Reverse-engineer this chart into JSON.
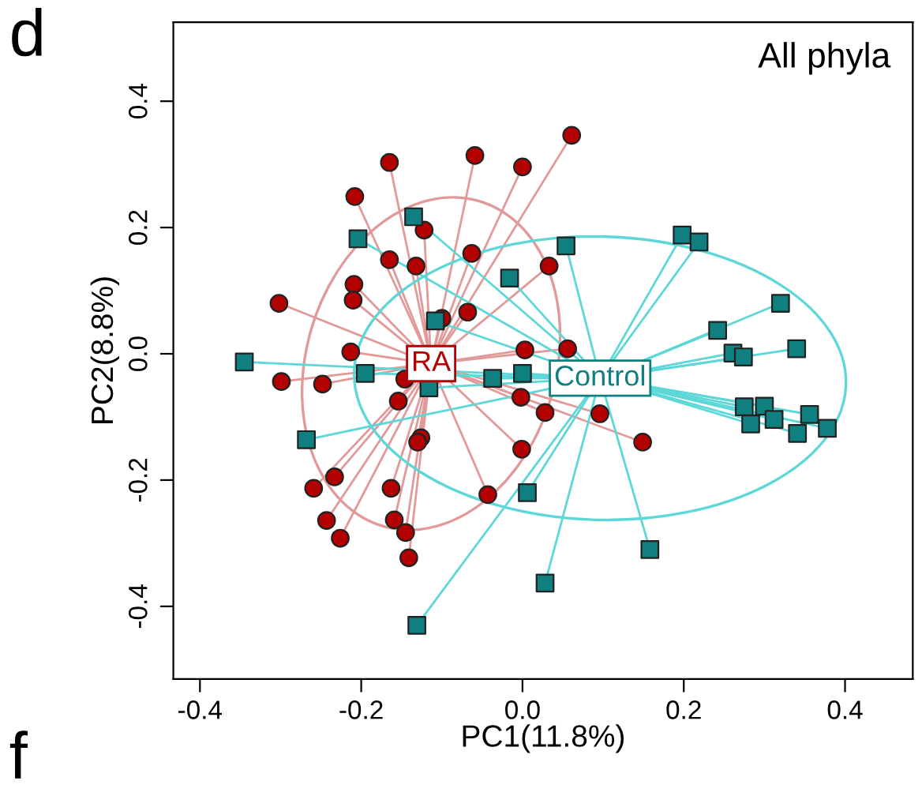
{
  "chart_data": {
    "type": "scatter",
    "title": "All phyla",
    "xlabel": "PC1(11.8%)",
    "ylabel": "PC2(8.8%)",
    "annotations": [
      "d",
      "f"
    ],
    "xlim": [
      -0.433,
      0.484
    ],
    "ylim": [
      -0.515,
      0.525
    ],
    "xticks": [
      -0.4,
      -0.2,
      {
        "value": 0,
        "label": "0.0"
      },
      0.2,
      0.4
    ],
    "yticks": [
      -0.4,
      -0.2,
      {
        "value": 0,
        "label": "0.0"
      },
      0.2,
      0.4
    ],
    "grid": false,
    "series": [
      {
        "name": "RA",
        "color": "#b30000",
        "marker": "circle",
        "x": [
          -0.165,
          -0.059,
          0.0,
          -0.208,
          -0.122,
          -0.165,
          -0.132,
          -0.063,
          -0.209,
          -0.21,
          -0.302,
          -0.1,
          -0.068,
          0.003,
          -0.213,
          0.061,
          0.033,
          0.056,
          -0.299,
          -0.248,
          -0.146,
          -0.154,
          -0.126,
          -0.13,
          -0.233,
          -0.259,
          -0.163,
          -0.243,
          -0.159,
          -0.226,
          -0.145,
          -0.141,
          -0.002,
          -0.001,
          -0.043,
          0.028,
          0.096,
          0.149
        ],
        "values": [
          0.303,
          0.314,
          0.296,
          0.249,
          0.196,
          0.149,
          0.139,
          0.159,
          0.11,
          0.085,
          0.08,
          0.056,
          0.066,
          0.006,
          0.003,
          0.346,
          0.139,
          0.008,
          -0.044,
          -0.048,
          -0.04,
          -0.075,
          -0.133,
          -0.14,
          -0.195,
          -0.213,
          -0.213,
          -0.264,
          -0.263,
          -0.292,
          -0.283,
          -0.323,
          -0.069,
          -0.151,
          -0.223,
          -0.093,
          -0.095,
          -0.14
        ]
      },
      {
        "name": "Control",
        "color": "#0f7f80",
        "marker": "square",
        "x": [
          -0.135,
          -0.204,
          -0.016,
          -0.108,
          -0.345,
          -0.195,
          0.054,
          0.198,
          0.219,
          0.32,
          0.242,
          0.261,
          0.274,
          0.34,
          -0.037,
          0.0,
          -0.116,
          -0.268,
          0.006,
          -0.131,
          0.028,
          0.275,
          0.3,
          0.283,
          0.312,
          0.341,
          0.356,
          0.378,
          0.158
        ],
        "values": [
          0.217,
          0.182,
          0.12,
          0.052,
          -0.013,
          -0.031,
          0.171,
          0.188,
          0.177,
          0.08,
          0.037,
          0.001,
          -0.005,
          0.008,
          -0.039,
          -0.031,
          -0.054,
          -0.136,
          -0.22,
          -0.43,
          -0.363,
          -0.084,
          -0.083,
          -0.111,
          -0.104,
          -0.126,
          -0.096,
          -0.118,
          -0.31
        ]
      }
    ]
  }
}
